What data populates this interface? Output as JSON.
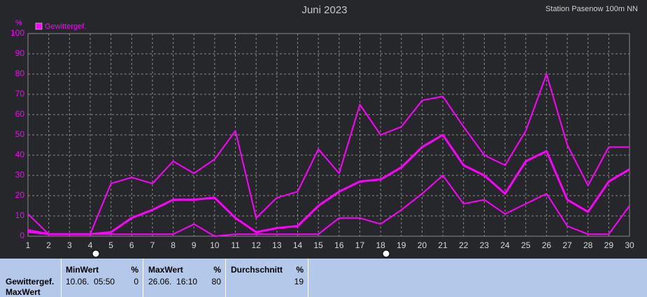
{
  "chart_data": {
    "type": "line",
    "title": "Juni 2023",
    "subtitle": "Station Pasenow 100m NN",
    "y_label": "%",
    "x": [
      1,
      2,
      3,
      4,
      5,
      6,
      7,
      8,
      9,
      10,
      11,
      12,
      13,
      14,
      15,
      16,
      17,
      18,
      19,
      20,
      21,
      22,
      23,
      24,
      25,
      26,
      27,
      28,
      29,
      30
    ],
    "xlim": [
      1,
      30
    ],
    "xticks": [
      1,
      2,
      3,
      4,
      5,
      6,
      7,
      8,
      9,
      10,
      11,
      12,
      13,
      14,
      15,
      16,
      17,
      18,
      19,
      20,
      21,
      22,
      23,
      24,
      25,
      26,
      27,
      28,
      29,
      30
    ],
    "ylim": [
      0,
      100
    ],
    "yticks": [
      0,
      10,
      20,
      30,
      40,
      50,
      60,
      70,
      80,
      90,
      100
    ],
    "grid": true,
    "series": [
      {
        "name": "Gewittergef.",
        "color": "#ff00ff",
        "line_width": 3,
        "values": [
          3,
          1,
          1,
          1,
          2,
          9,
          13,
          18,
          18,
          19,
          9,
          2,
          4,
          5,
          15,
          22,
          27,
          28,
          34,
          44,
          50,
          35,
          30,
          21,
          37,
          42,
          18,
          12,
          27,
          33
        ]
      },
      {
        "color": "#ff00ff",
        "line_width": 2,
        "values": [
          11,
          1,
          1,
          1,
          26,
          29,
          26,
          37,
          31,
          38,
          52,
          9,
          19,
          22,
          43,
          31,
          65,
          50,
          54,
          67,
          69,
          54,
          40,
          35,
          52,
          80,
          45,
          25,
          44,
          44
        ]
      },
      {
        "color": "#ff00ff",
        "line_width": 2,
        "values": [
          2,
          1,
          1,
          1,
          1,
          1,
          1,
          1,
          6,
          0,
          1,
          1,
          1,
          1,
          1,
          9,
          9,
          6,
          13,
          21,
          30,
          16,
          18,
          11,
          16,
          21,
          5,
          1,
          1,
          15
        ]
      }
    ]
  },
  "table": {
    "row_label": [
      "Gewittergef.",
      "MaxWert"
    ],
    "columns": [
      {
        "header": "MinWert",
        "unit": "%",
        "time": "10.06.  05:50",
        "value": 0
      },
      {
        "header": "MaxWert",
        "unit": "%",
        "time": "26.06.  16:10",
        "value": 80
      },
      {
        "header": "Durchschnitt",
        "unit": "%",
        "value": 19
      }
    ]
  }
}
